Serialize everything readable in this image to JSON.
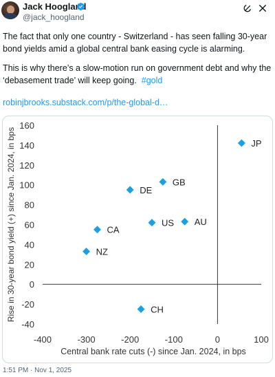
{
  "author": {
    "name": "Jack Hoogland",
    "handle": "@jack_hoogland"
  },
  "icons": {
    "verified": "verified-badge-icon",
    "grok": "grok-icon",
    "close": "close-icon"
  },
  "tweet": {
    "paragraph1": "The fact that only one country - Switzerland - has seen falling 30-year bond yields amid a global central bank easing cycle is alarming.",
    "paragraph2": "This is why there’s a slow-motion run on government debt and why the ‘debasement trade’ will keep going.",
    "hashtag": "#gold",
    "link": "robinjbrooks.substack.com/p/the-global-d…",
    "timestamp": "1:51 PM · Nov 1, 2025"
  },
  "colors": {
    "accent": "#1d9bf0",
    "marker": "#1ba1e2"
  },
  "chart_data": {
    "type": "scatter",
    "xlabel": "Central bank rate cuts (-) since Jan. 2024, in bps",
    "ylabel": "Rise in 30-year bond yield (+) since Jan. 2024, in bps",
    "xlim": [
      -400,
      100
    ],
    "ylim": [
      -40,
      160
    ],
    "xticks": [
      -400,
      -300,
      -200,
      -100,
      0,
      100
    ],
    "yticks": [
      -40,
      -20,
      0,
      20,
      40,
      60,
      80,
      100,
      120,
      140,
      160
    ],
    "grid": false,
    "points": [
      {
        "label": "JP",
        "x": 55,
        "y": 142
      },
      {
        "label": "GB",
        "x": -125,
        "y": 103
      },
      {
        "label": "DE",
        "x": -200,
        "y": 95
      },
      {
        "label": "US",
        "x": -150,
        "y": 62
      },
      {
        "label": "AU",
        "x": -75,
        "y": 63
      },
      {
        "label": "CA",
        "x": -275,
        "y": 55
      },
      {
        "label": "NZ",
        "x": -300,
        "y": 33
      },
      {
        "label": "CH",
        "x": -175,
        "y": -25
      }
    ]
  }
}
